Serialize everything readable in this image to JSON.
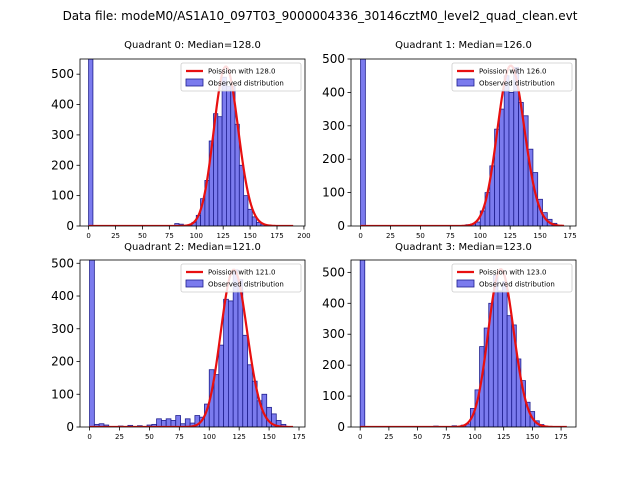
{
  "figure": {
    "title": "Data file: modeM0/AS1A10_097T03_9000004336_30146cztM0_level2_quad_clean.evt"
  },
  "colors": {
    "bar_fill": "#7b7bee",
    "bar_edge": "#1f1f8f",
    "curve": "#e81010",
    "axis": "#000000"
  },
  "chart_data": [
    {
      "type": "bar",
      "title": "Quadrant 0: Median=128.0",
      "xlim": [
        -8,
        201
      ],
      "ylim": [
        0,
        550
      ],
      "xticks": [
        0,
        25,
        50,
        75,
        100,
        125,
        150,
        175,
        200
      ],
      "yticks": [
        0,
        100,
        200,
        300,
        400,
        500
      ],
      "bin_width": 4,
      "bars": [
        {
          "x": 0,
          "h": 550
        },
        {
          "x": 80,
          "h": 8
        },
        {
          "x": 84,
          "h": 6
        },
        {
          "x": 92,
          "h": 4
        },
        {
          "x": 96,
          "h": 12
        },
        {
          "x": 100,
          "h": 35
        },
        {
          "x": 104,
          "h": 90
        },
        {
          "x": 108,
          "h": 150
        },
        {
          "x": 112,
          "h": 280
        },
        {
          "x": 116,
          "h": 370
        },
        {
          "x": 120,
          "h": 360
        },
        {
          "x": 124,
          "h": 490
        },
        {
          "x": 128,
          "h": 460
        },
        {
          "x": 132,
          "h": 460
        },
        {
          "x": 136,
          "h": 335
        },
        {
          "x": 140,
          "h": 200
        },
        {
          "x": 144,
          "h": 100
        },
        {
          "x": 148,
          "h": 55
        },
        {
          "x": 152,
          "h": 30
        },
        {
          "x": 156,
          "h": 12
        },
        {
          "x": 160,
          "h": 6
        },
        {
          "x": 164,
          "h": 3
        }
      ],
      "poisson": {
        "lambda": 128.0,
        "peak": 525,
        "x_range": [
          0,
          190
        ]
      },
      "legend": {
        "curve_label": "Poission with 128.0",
        "bars_label": "Observed distribution",
        "position": "upper right"
      }
    },
    {
      "type": "bar",
      "title": "Quadrant 1: Median=126.0",
      "xlim": [
        -8,
        180
      ],
      "ylim": [
        0,
        500
      ],
      "xticks": [
        0,
        25,
        50,
        75,
        100,
        125,
        150,
        175
      ],
      "yticks": [
        0,
        100,
        200,
        300,
        400,
        500
      ],
      "bin_width": 4,
      "bars": [
        {
          "x": 0,
          "h": 500
        },
        {
          "x": 88,
          "h": 4
        },
        {
          "x": 92,
          "h": 6
        },
        {
          "x": 96,
          "h": 12
        },
        {
          "x": 100,
          "h": 45
        },
        {
          "x": 104,
          "h": 100
        },
        {
          "x": 108,
          "h": 180
        },
        {
          "x": 112,
          "h": 290
        },
        {
          "x": 116,
          "h": 350
        },
        {
          "x": 120,
          "h": 450
        },
        {
          "x": 124,
          "h": 400
        },
        {
          "x": 128,
          "h": 475
        },
        {
          "x": 132,
          "h": 370
        },
        {
          "x": 136,
          "h": 330
        },
        {
          "x": 140,
          "h": 230
        },
        {
          "x": 144,
          "h": 160
        },
        {
          "x": 148,
          "h": 80
        },
        {
          "x": 152,
          "h": 40
        },
        {
          "x": 156,
          "h": 20
        },
        {
          "x": 160,
          "h": 8
        }
      ],
      "poisson": {
        "lambda": 126.0,
        "peak": 480,
        "x_range": [
          0,
          170
        ]
      },
      "legend": {
        "curve_label": "Poission with 126.0",
        "bars_label": "Observed distribution",
        "position": "upper right"
      }
    },
    {
      "type": "bar",
      "title": "Quadrant 2: Median=121.0",
      "xlim": [
        -8,
        180
      ],
      "ylim": [
        0,
        510
      ],
      "xticks": [
        0,
        25,
        50,
        75,
        100,
        125,
        150,
        175
      ],
      "yticks": [
        0,
        100,
        200,
        300,
        400,
        500
      ],
      "bin_width": 4,
      "bars": [
        {
          "x": 0,
          "h": 510
        },
        {
          "x": 4,
          "h": 8
        },
        {
          "x": 8,
          "h": 10
        },
        {
          "x": 12,
          "h": 6
        },
        {
          "x": 24,
          "h": 3
        },
        {
          "x": 32,
          "h": 5
        },
        {
          "x": 40,
          "h": 4
        },
        {
          "x": 48,
          "h": 6
        },
        {
          "x": 52,
          "h": 8
        },
        {
          "x": 56,
          "h": 25
        },
        {
          "x": 60,
          "h": 20
        },
        {
          "x": 64,
          "h": 25
        },
        {
          "x": 68,
          "h": 20
        },
        {
          "x": 72,
          "h": 35
        },
        {
          "x": 76,
          "h": 10
        },
        {
          "x": 80,
          "h": 25
        },
        {
          "x": 84,
          "h": 12
        },
        {
          "x": 88,
          "h": 35
        },
        {
          "x": 92,
          "h": 30
        },
        {
          "x": 96,
          "h": 70
        },
        {
          "x": 100,
          "h": 175
        },
        {
          "x": 104,
          "h": 160
        },
        {
          "x": 108,
          "h": 250
        },
        {
          "x": 112,
          "h": 390
        },
        {
          "x": 116,
          "h": 385
        },
        {
          "x": 120,
          "h": 480
        },
        {
          "x": 124,
          "h": 450
        },
        {
          "x": 128,
          "h": 280
        },
        {
          "x": 132,
          "h": 190
        },
        {
          "x": 136,
          "h": 140
        },
        {
          "x": 140,
          "h": 80
        },
        {
          "x": 144,
          "h": 100
        },
        {
          "x": 148,
          "h": 60
        },
        {
          "x": 152,
          "h": 40
        },
        {
          "x": 156,
          "h": 20
        },
        {
          "x": 160,
          "h": 8
        }
      ],
      "poisson": {
        "lambda": 121.0,
        "peak": 480,
        "x_range": [
          0,
          170
        ]
      },
      "legend": {
        "curve_label": "Poission with 121.0",
        "bars_label": "Observed distribution",
        "position": "upper right"
      }
    },
    {
      "type": "bar",
      "title": "Quadrant 3: Median=123.0",
      "xlim": [
        -8,
        188
      ],
      "ylim": [
        0,
        540
      ],
      "xticks": [
        0,
        25,
        50,
        75,
        100,
        125,
        150,
        175
      ],
      "yticks": [
        0,
        100,
        200,
        300,
        400,
        500
      ],
      "bin_width": 4,
      "bars": [
        {
          "x": 0,
          "h": 540
        },
        {
          "x": 64,
          "h": 3
        },
        {
          "x": 80,
          "h": 4
        },
        {
          "x": 88,
          "h": 6
        },
        {
          "x": 92,
          "h": 10
        },
        {
          "x": 96,
          "h": 60
        },
        {
          "x": 100,
          "h": 120
        },
        {
          "x": 104,
          "h": 260
        },
        {
          "x": 108,
          "h": 320
        },
        {
          "x": 112,
          "h": 400
        },
        {
          "x": 116,
          "h": 490
        },
        {
          "x": 120,
          "h": 440
        },
        {
          "x": 124,
          "h": 470
        },
        {
          "x": 128,
          "h": 360
        },
        {
          "x": 132,
          "h": 330
        },
        {
          "x": 136,
          "h": 220
        },
        {
          "x": 140,
          "h": 150
        },
        {
          "x": 144,
          "h": 80
        },
        {
          "x": 148,
          "h": 50
        },
        {
          "x": 152,
          "h": 20
        },
        {
          "x": 156,
          "h": 8
        }
      ],
      "poisson": {
        "lambda": 123.0,
        "peak": 510,
        "x_range": [
          0,
          180
        ]
      },
      "legend": {
        "curve_label": "Poission with 123.0",
        "bars_label": "Observed distribution",
        "position": "upper right"
      }
    }
  ]
}
